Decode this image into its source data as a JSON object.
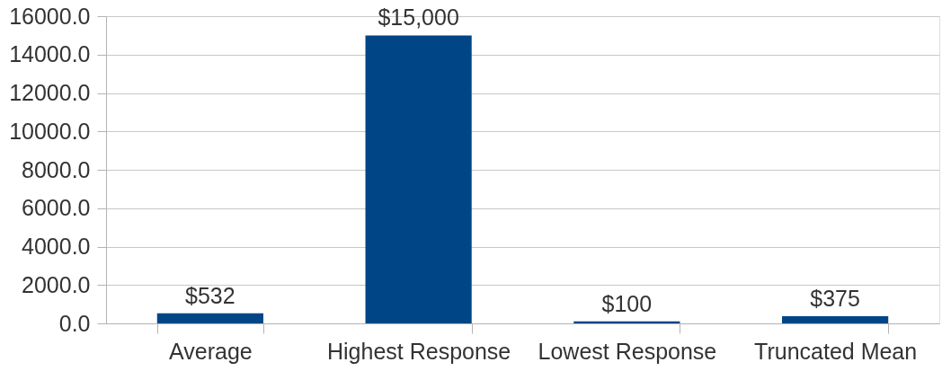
{
  "chart_data": {
    "type": "bar",
    "categories": [
      "Average",
      "Highest Response",
      "Lowest Response",
      "Truncated Mean"
    ],
    "values": [
      532,
      15000,
      100,
      375
    ],
    "color": "#004586",
    "value_labels": [
      "$532",
      "$15,000",
      "$100",
      "$375"
    ],
    "ylim": [
      0,
      16000
    ],
    "yticks": [
      {
        "value": 0,
        "label": "0.0"
      },
      {
        "value": 2000,
        "label": "2000.0"
      },
      {
        "value": 4000,
        "label": "4000.0"
      },
      {
        "value": 6000,
        "label": "6000.0"
      },
      {
        "value": 8000,
        "label": "8000.0"
      },
      {
        "value": 10000,
        "label": "10000.0"
      },
      {
        "value": 12000,
        "label": "12000.0"
      },
      {
        "value": 14000,
        "label": "14000.0"
      },
      {
        "value": 16000,
        "label": "16000.0"
      }
    ],
    "grid": "y"
  }
}
